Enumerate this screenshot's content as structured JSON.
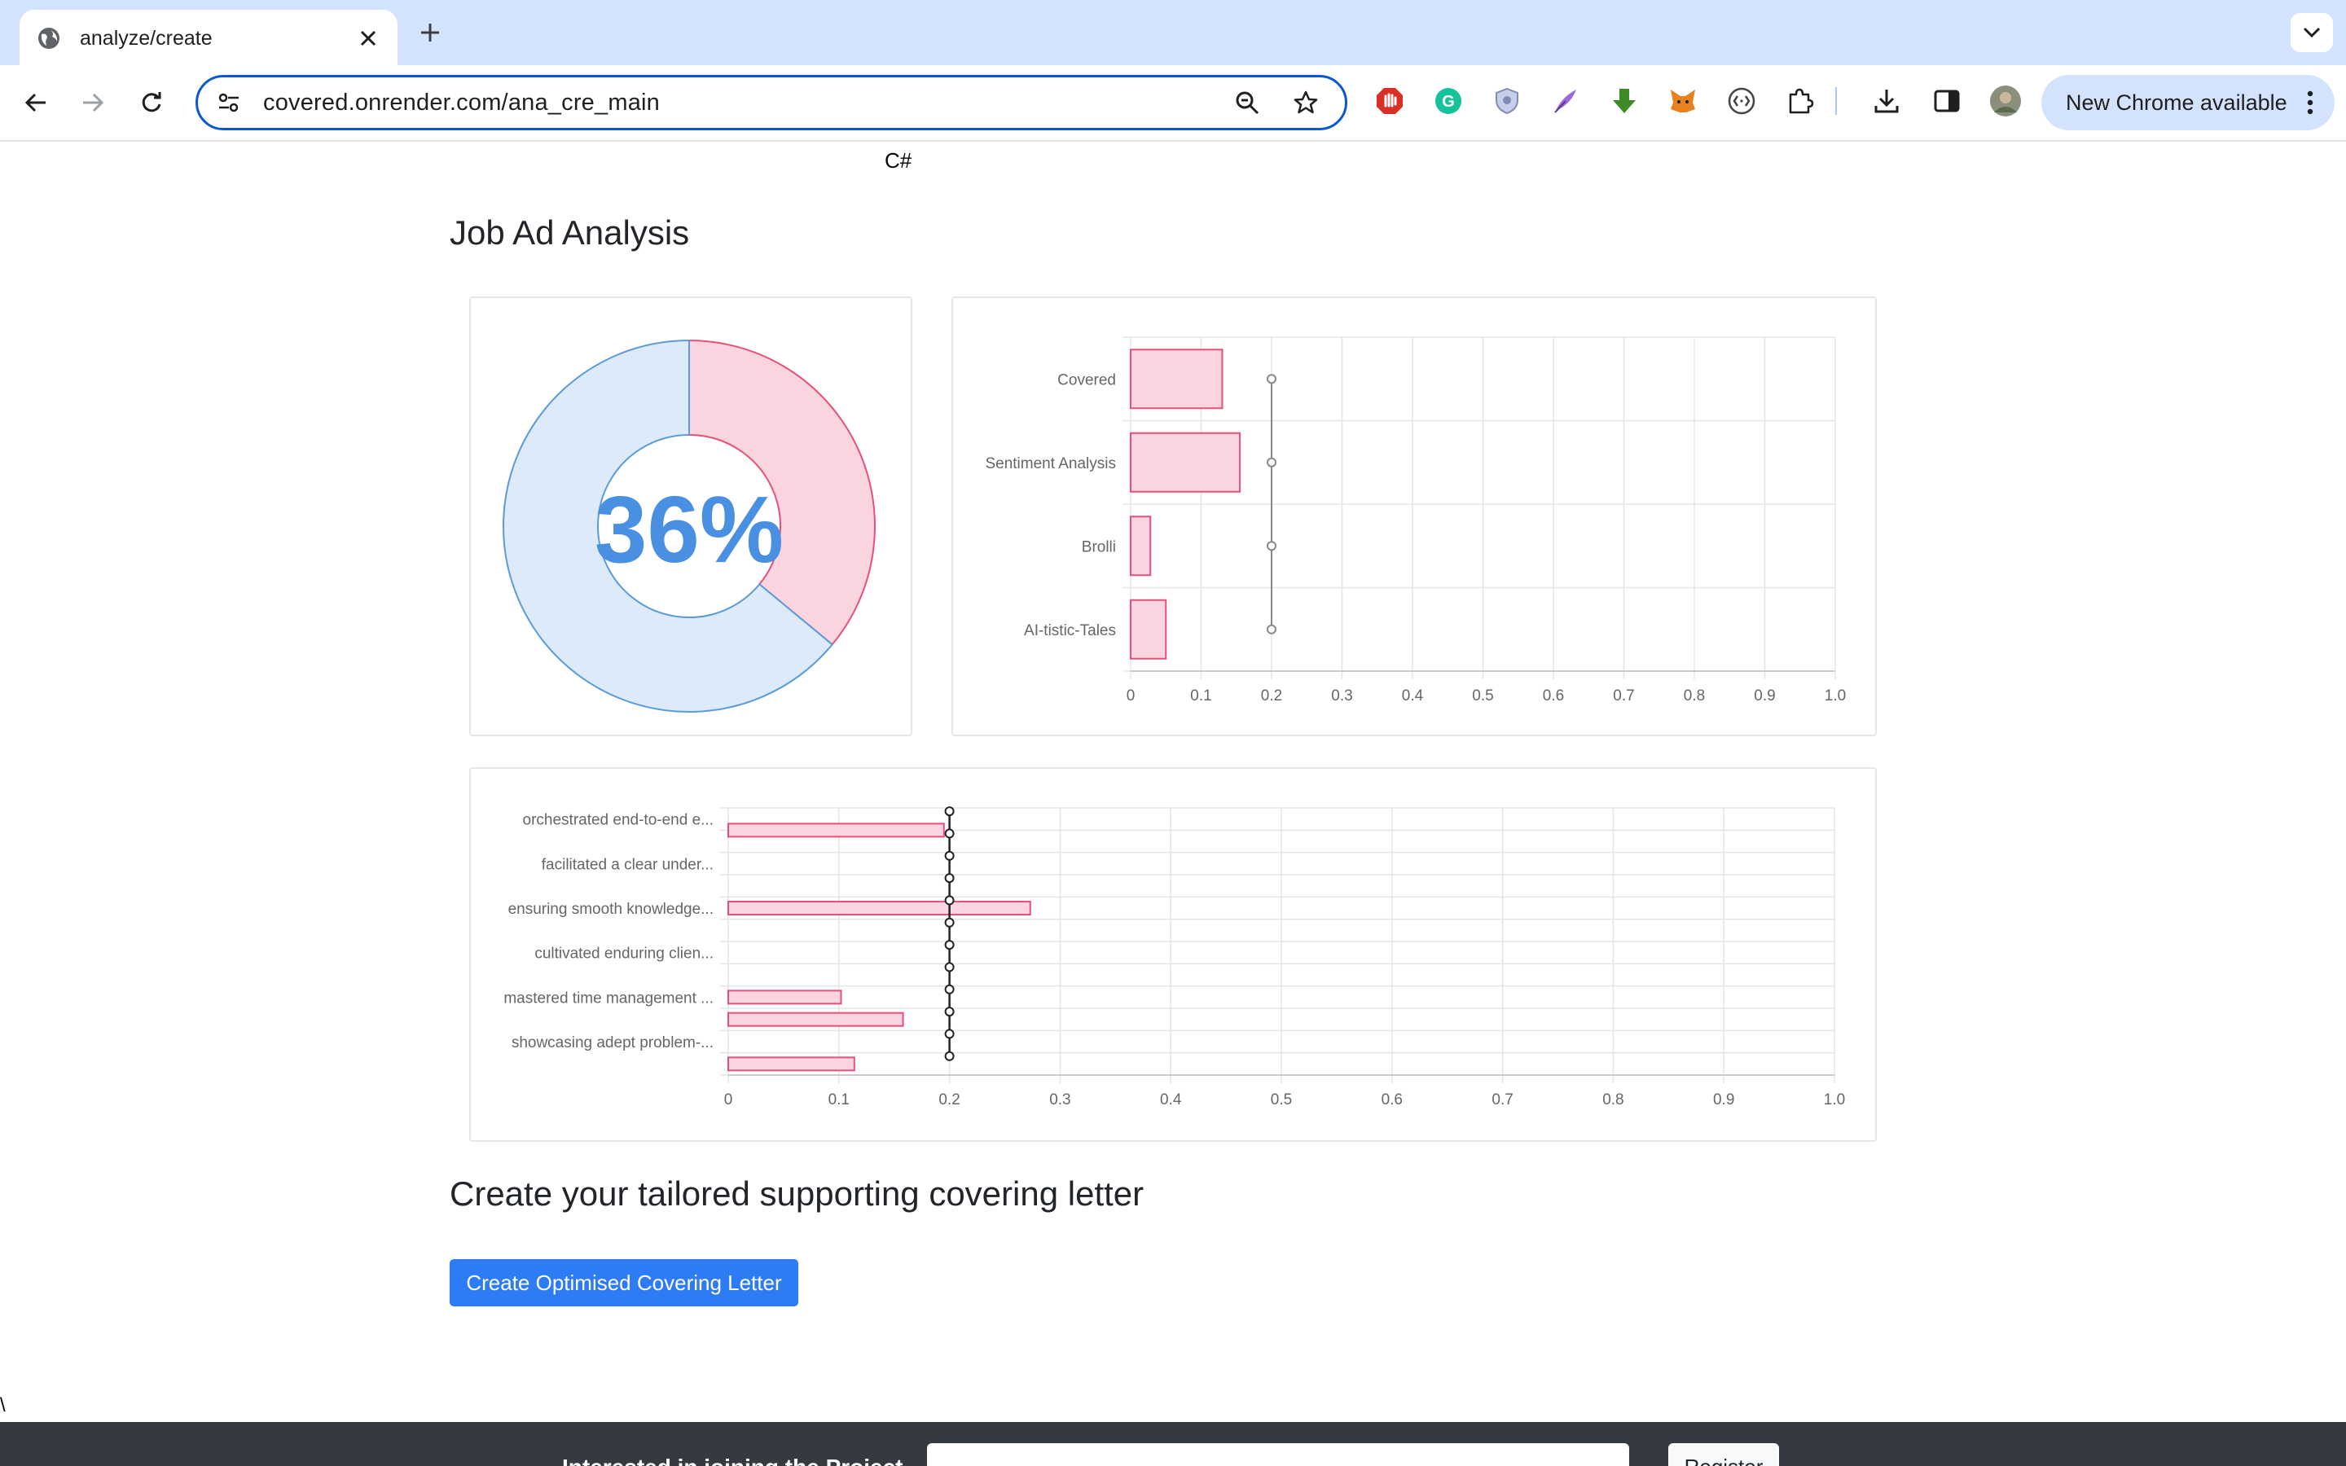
{
  "browser": {
    "tab_title": "analyze/create",
    "url": "covered.onrender.com/ana_cre_main",
    "update_button": "New Chrome available",
    "extensions": [
      "adblock-icon",
      "grammarly-icon",
      "shield-extension-icon",
      "quill-extension-icon",
      "download-arrow-extension-icon",
      "fox-wallet-icon",
      "code-brackets-extension-icon",
      "puzzle-extensions-icon"
    ]
  },
  "page": {
    "skill_tag": "C#",
    "title": "Job Ad Analysis",
    "create_heading": "Create your tailored supporting covering letter",
    "create_button": "Create Optimised Covering Letter",
    "stray_char": "\\",
    "footer_text": "Interested in joining the Project",
    "footer_button": "Register"
  },
  "colors": {
    "pink_fill": "#fad4de",
    "pink_stroke": "#e8507a",
    "blue_fill": "#dceafa",
    "blue_stroke": "#5b9bd9",
    "percent_text": "#4a90e2",
    "button": "#2e7bf6"
  },
  "chart_data": [
    {
      "type": "pie",
      "variant": "doughnut",
      "center_label": "36%",
      "values": [
        36,
        64
      ],
      "slice_colors": [
        "#fad4de",
        "#dceafa"
      ]
    },
    {
      "type": "bar",
      "orientation": "horizontal",
      "categories": [
        "Covered",
        "Sentiment Analysis",
        "Brolli",
        "AI-tistic-Tales"
      ],
      "values": [
        0.13,
        0.155,
        0.028,
        0.05
      ],
      "reference_line": [
        0.2,
        0.2,
        0.2,
        0.2
      ],
      "xlim": [
        0,
        1.0
      ],
      "xticks": [
        "0",
        "0.1",
        "0.2",
        "0.3",
        "0.4",
        "0.5",
        "0.6",
        "0.7",
        "0.8",
        "0.9",
        "1.0"
      ],
      "grid": true
    },
    {
      "type": "bar",
      "orientation": "horizontal",
      "categories": [
        "orchestrated end-to-end e...",
        "",
        "facilitated a clear under...",
        "",
        "ensuring smooth knowledge...",
        "",
        "cultivated enduring clien...",
        "",
        "mastered time management ...",
        "",
        "showcasing adept problem-...",
        ""
      ],
      "values": [
        0.195,
        0,
        0,
        0,
        0.273,
        0,
        0,
        0,
        0.102,
        0.158,
        0,
        0.114
      ],
      "bar_positions": [
        0.5,
        1,
        2,
        3,
        4,
        5,
        6,
        7,
        8,
        9,
        10,
        11
      ],
      "reference_line": [
        0.2,
        0.2,
        0.2,
        0.2,
        0.2,
        0.2,
        0.2,
        0.2,
        0.2,
        0.2,
        0.2,
        0.2
      ],
      "xlim": [
        0,
        1.0
      ],
      "xticks": [
        "0",
        "0.1",
        "0.2",
        "0.3",
        "0.4",
        "0.5",
        "0.6",
        "0.7",
        "0.8",
        "0.9",
        "1.0"
      ],
      "grid": true
    }
  ]
}
